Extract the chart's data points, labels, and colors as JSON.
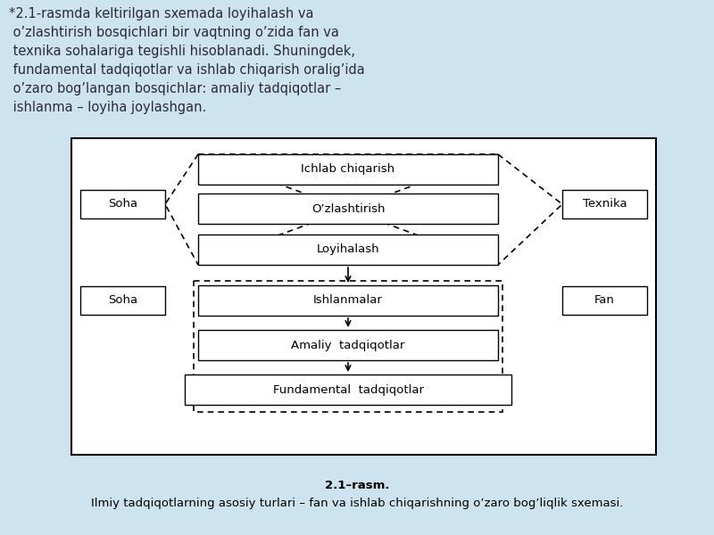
{
  "bg_color": "#cde4f0",
  "text_color": "#2a2a3a",
  "header_text": "*2.1-rasmda keltirilgan sxemada loyihalash va\n o’zlashtirish bosqichlari bir vaqtning o’zida fan va\n texnika sohalariga tegishli hisoblanadi. Shuningdek,\n fundamental tadqiqotlar va ishlab chiqarish oralig’ida\n o’zaro bog’langan bosqichlar: amaliy tadqiqotlar –\n ishlanma – loyiha joylashgan.",
  "caption_bold": "2.1–rasm.",
  "caption_normal": " Ilmiy tadqiqotlarning asosiy turlari – fan va ishlab chiqarishning o’zaro bog’liqlik sxemasi.",
  "boxes": {
    "ichlab_chiqarish": "Ichlab chiqarish",
    "ozlashtirish": "O’zlashtirish",
    "loyihalash": "Loyihalash",
    "ishlanmalar": "Ishlanmalar",
    "amaliy": "Amaliy  tadqiqotlar",
    "fundamental": "Fundamental  tadqiqotlar",
    "soha_top": "Soha",
    "texnika": "Texnika",
    "soha_bot": "Soha",
    "fan": "Fan"
  }
}
